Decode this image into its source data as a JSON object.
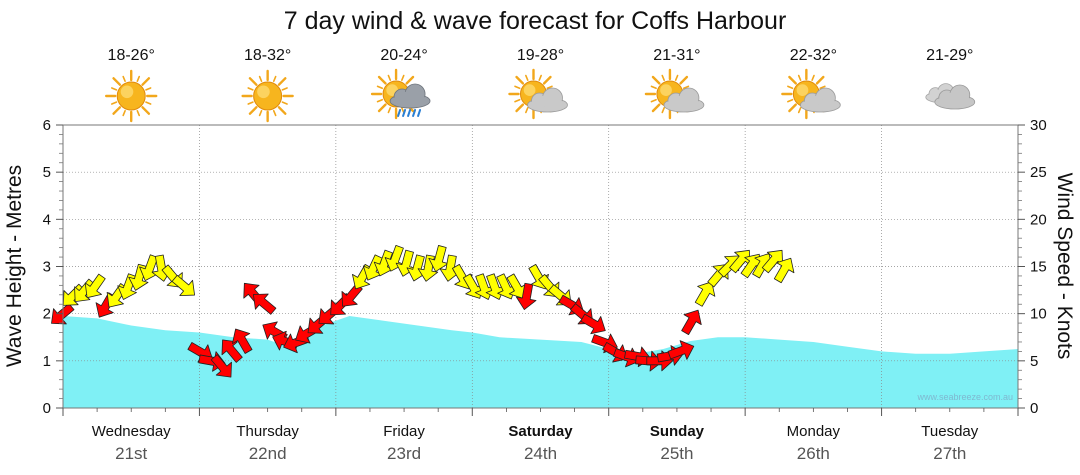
{
  "chart_data": {
    "type": "area",
    "title": "7 day wind & wave forecast for Coffs Harbour",
    "ylabel_left": "Wave Height - Metres",
    "ylabel_right": "Wind Speed - Knots",
    "ylim_left": [
      0,
      6
    ],
    "ylim_right": [
      0,
      30
    ],
    "yticks_left": [
      "0",
      "1",
      "2",
      "3",
      "4",
      "5",
      "6"
    ],
    "yticks_right": [
      "0",
      "5",
      "10",
      "15",
      "20",
      "25",
      "30"
    ],
    "grid": true,
    "credit": "www.seabreeze.com.au",
    "days": [
      {
        "name": "Wednesday",
        "date": "21st",
        "bold": false,
        "temp": "18-26°",
        "weather": "sunny"
      },
      {
        "name": "Thursday",
        "date": "22nd",
        "bold": false,
        "temp": "18-32°",
        "weather": "sunny"
      },
      {
        "name": "Friday",
        "date": "23rd",
        "bold": false,
        "temp": "20-24°",
        "weather": "rain"
      },
      {
        "name": "Saturday",
        "date": "24th",
        "bold": true,
        "temp": "19-28°",
        "weather": "partly-cloudy"
      },
      {
        "name": "Sunday",
        "date": "25th",
        "bold": true,
        "temp": "21-31°",
        "weather": "partly-cloudy"
      },
      {
        "name": "Monday",
        "date": "26th",
        "bold": false,
        "temp": "22-32°",
        "weather": "partly-cloudy"
      },
      {
        "name": "Tuesday",
        "date": "27th",
        "bold": false,
        "temp": "21-29°",
        "weather": "cloudy"
      }
    ],
    "wave_series": {
      "name": "Wave Height",
      "color": "#7ff0f5",
      "x_days": [
        0,
        0.25,
        0.5,
        0.75,
        1.0,
        1.25,
        1.5,
        1.7,
        1.9,
        2.1,
        2.35,
        2.6,
        2.85,
        3.0,
        3.2,
        3.5,
        3.8,
        4.0,
        4.2,
        4.4,
        4.6,
        4.8,
        5.0,
        5.25,
        5.5,
        5.75,
        6.0,
        6.25,
        6.5,
        6.75,
        7.0
      ],
      "values": [
        1.95,
        1.9,
        1.75,
        1.65,
        1.6,
        1.5,
        1.45,
        1.25,
        1.75,
        1.95,
        1.85,
        1.75,
        1.65,
        1.6,
        1.5,
        1.45,
        1.4,
        1.25,
        1.15,
        1.25,
        1.42,
        1.5,
        1.5,
        1.45,
        1.4,
        1.3,
        1.2,
        1.15,
        1.15,
        1.2,
        1.25
      ]
    },
    "wind_series": {
      "name": "Wind",
      "unit": "knots",
      "colors": {
        "light": "#33cc33",
        "moderate": "#ffff00",
        "strong": "#ff0000"
      },
      "arrows": [
        {
          "t": 0.0,
          "speed": 10,
          "dir": 230,
          "level": "strong"
        },
        {
          "t": 0.08,
          "speed": 12,
          "dir": 225,
          "level": "moderate"
        },
        {
          "t": 0.16,
          "speed": 12.5,
          "dir": 220,
          "level": "moderate"
        },
        {
          "t": 0.24,
          "speed": 13,
          "dir": 215,
          "level": "moderate"
        },
        {
          "t": 0.32,
          "speed": 11,
          "dir": 210,
          "level": "strong"
        },
        {
          "t": 0.4,
          "speed": 12,
          "dir": 215,
          "level": "moderate"
        },
        {
          "t": 0.48,
          "speed": 13,
          "dir": 200,
          "level": "moderate"
        },
        {
          "t": 0.56,
          "speed": 14,
          "dir": 195,
          "level": "moderate"
        },
        {
          "t": 0.64,
          "speed": 15,
          "dir": 200,
          "level": "moderate"
        },
        {
          "t": 0.72,
          "speed": 15,
          "dir": 170,
          "level": "moderate"
        },
        {
          "t": 0.8,
          "speed": 14,
          "dir": 140,
          "level": "moderate"
        },
        {
          "t": 0.88,
          "speed": 13,
          "dir": 130,
          "level": "moderate"
        },
        {
          "t": 1.0,
          "speed": 6,
          "dir": 120,
          "level": "strong"
        },
        {
          "t": 1.08,
          "speed": 5,
          "dir": 100,
          "level": "strong"
        },
        {
          "t": 1.16,
          "speed": 4.5,
          "dir": 140,
          "level": "strong"
        },
        {
          "t": 1.24,
          "speed": 6,
          "dir": 320,
          "level": "strong"
        },
        {
          "t": 1.32,
          "speed": 7,
          "dir": 330,
          "level": "strong"
        },
        {
          "t": 1.4,
          "speed": 12,
          "dir": 320,
          "level": "strong"
        },
        {
          "t": 1.48,
          "speed": 11,
          "dir": 310,
          "level": "strong"
        },
        {
          "t": 1.56,
          "speed": 8,
          "dir": 300,
          "level": "strong"
        },
        {
          "t": 1.64,
          "speed": 7,
          "dir": 290,
          "level": "strong"
        },
        {
          "t": 1.72,
          "speed": 7,
          "dir": 250,
          "level": "strong"
        },
        {
          "t": 1.8,
          "speed": 8,
          "dir": 240,
          "level": "strong"
        },
        {
          "t": 1.88,
          "speed": 9,
          "dir": 230,
          "level": "strong"
        },
        {
          "t": 1.96,
          "speed": 10,
          "dir": 230,
          "level": "strong"
        },
        {
          "t": 2.04,
          "speed": 11,
          "dir": 225,
          "level": "strong"
        },
        {
          "t": 2.12,
          "speed": 12,
          "dir": 220,
          "level": "strong"
        },
        {
          "t": 2.2,
          "speed": 14,
          "dir": 210,
          "level": "moderate"
        },
        {
          "t": 2.28,
          "speed": 15,
          "dir": 205,
          "level": "moderate"
        },
        {
          "t": 2.36,
          "speed": 15.5,
          "dir": 200,
          "level": "moderate"
        },
        {
          "t": 2.44,
          "speed": 16,
          "dir": 200,
          "level": "moderate"
        },
        {
          "t": 2.52,
          "speed": 15.5,
          "dir": 195,
          "level": "moderate"
        },
        {
          "t": 2.6,
          "speed": 15,
          "dir": 195,
          "level": "moderate"
        },
        {
          "t": 2.68,
          "speed": 15,
          "dir": 190,
          "level": "moderate"
        },
        {
          "t": 2.76,
          "speed": 16,
          "dir": 195,
          "level": "moderate"
        },
        {
          "t": 2.84,
          "speed": 15,
          "dir": 190,
          "level": "moderate"
        },
        {
          "t": 2.92,
          "speed": 14,
          "dir": 150,
          "level": "moderate"
        },
        {
          "t": 3.0,
          "speed": 13,
          "dir": 150,
          "level": "moderate"
        },
        {
          "t": 3.08,
          "speed": 13,
          "dir": 160,
          "level": "moderate"
        },
        {
          "t": 3.16,
          "speed": 13,
          "dir": 160,
          "level": "moderate"
        },
        {
          "t": 3.24,
          "speed": 13,
          "dir": 155,
          "level": "moderate"
        },
        {
          "t": 3.32,
          "speed": 13,
          "dir": 150,
          "level": "moderate"
        },
        {
          "t": 3.4,
          "speed": 12,
          "dir": 190,
          "level": "strong"
        },
        {
          "t": 3.48,
          "speed": 14,
          "dir": 150,
          "level": "moderate"
        },
        {
          "t": 3.56,
          "speed": 13,
          "dir": 140,
          "level": "moderate"
        },
        {
          "t": 3.64,
          "speed": 12,
          "dir": 130,
          "level": "moderate"
        },
        {
          "t": 3.72,
          "speed": 11,
          "dir": 120,
          "level": "strong"
        },
        {
          "t": 3.8,
          "speed": 10,
          "dir": 130,
          "level": "strong"
        },
        {
          "t": 3.88,
          "speed": 9,
          "dir": 120,
          "level": "strong"
        },
        {
          "t": 3.96,
          "speed": 7,
          "dir": 110,
          "level": "strong"
        },
        {
          "t": 4.04,
          "speed": 6,
          "dir": 120,
          "level": "strong"
        },
        {
          "t": 4.12,
          "speed": 5.5,
          "dir": 110,
          "level": "strong"
        },
        {
          "t": 4.2,
          "speed": 5.5,
          "dir": 100,
          "level": "strong"
        },
        {
          "t": 4.28,
          "speed": 5,
          "dir": 95,
          "level": "strong"
        },
        {
          "t": 4.36,
          "speed": 5,
          "dir": 90,
          "level": "strong"
        },
        {
          "t": 4.44,
          "speed": 5.5,
          "dir": 80,
          "level": "strong"
        },
        {
          "t": 4.52,
          "speed": 6,
          "dir": 70,
          "level": "strong"
        },
        {
          "t": 4.6,
          "speed": 9,
          "dir": 30,
          "level": "strong"
        },
        {
          "t": 4.7,
          "speed": 12,
          "dir": 30,
          "level": "moderate"
        },
        {
          "t": 4.8,
          "speed": 14,
          "dir": 40,
          "level": "moderate"
        },
        {
          "t": 4.88,
          "speed": 15,
          "dir": 45,
          "level": "moderate"
        },
        {
          "t": 4.96,
          "speed": 15.5,
          "dir": 40,
          "level": "moderate"
        },
        {
          "t": 5.04,
          "speed": 15,
          "dir": 35,
          "level": "moderate"
        },
        {
          "t": 5.12,
          "speed": 15,
          "dir": 30,
          "level": "moderate"
        },
        {
          "t": 5.2,
          "speed": 15.5,
          "dir": 40,
          "level": "moderate"
        },
        {
          "t": 5.28,
          "speed": 14.5,
          "dir": 30,
          "level": "moderate"
        }
      ]
    }
  }
}
